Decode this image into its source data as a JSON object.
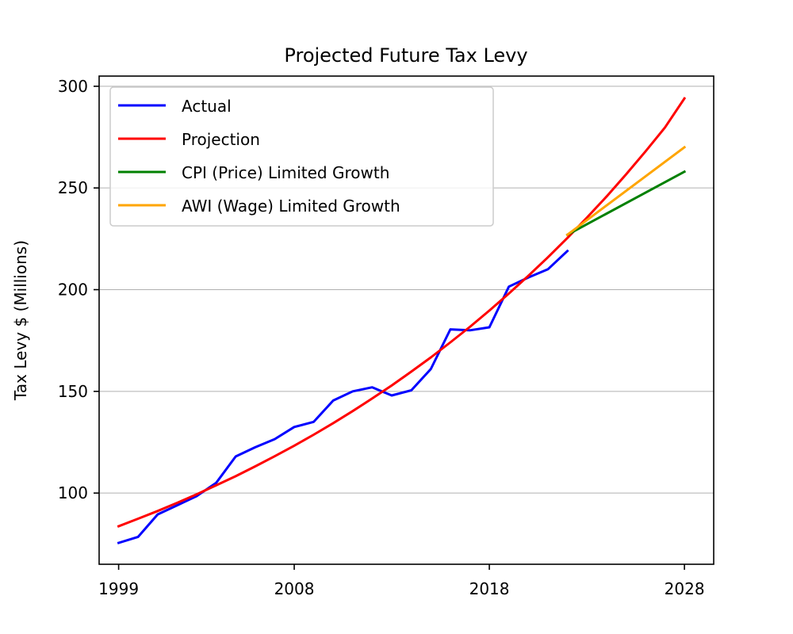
{
  "chart_data": {
    "type": "line",
    "title": "Projected Future Tax Levy",
    "xlabel": "",
    "ylabel": "Tax Levy $ (Millions)",
    "xlim": [
      1998,
      2029.5
    ],
    "ylim": [
      65,
      305
    ],
    "xticks": [
      1999,
      2008,
      2018,
      2028
    ],
    "yticks": [
      100,
      150,
      200,
      250,
      300
    ],
    "grid": "y-major",
    "legend_position": "upper-left",
    "series": [
      {
        "name": "Actual",
        "color": "#0000ff",
        "x": [
          1999,
          2000,
          2001,
          2002,
          2003,
          2004,
          2005,
          2006,
          2007,
          2008,
          2009,
          2010,
          2011,
          2012,
          2013,
          2014,
          2015,
          2016,
          2017,
          2018,
          2019,
          2020,
          2021,
          2022
        ],
        "y": [
          75.5,
          78.5,
          89.5,
          94,
          98.5,
          105,
          118,
          122.5,
          126.5,
          132.5,
          135,
          145.5,
          150,
          152,
          148,
          150.5,
          161,
          180.5,
          180,
          181.5,
          201.5,
          206,
          210,
          219
        ]
      },
      {
        "name": "Projection",
        "color": "#ff0000",
        "x": [
          1999,
          2000,
          2001,
          2002,
          2003,
          2004,
          2005,
          2006,
          2007,
          2008,
          2009,
          2010,
          2011,
          2012,
          2013,
          2014,
          2015,
          2016,
          2017,
          2018,
          2019,
          2020,
          2021,
          2022,
          2023,
          2024,
          2025,
          2026,
          2027,
          2028
        ],
        "y": [
          83.7,
          87.4,
          91.2,
          95.2,
          99.4,
          103.8,
          108.3,
          113.1,
          118.1,
          123.3,
          128.7,
          134.4,
          140.3,
          146.5,
          152.9,
          159.7,
          166.7,
          174.1,
          181.7,
          189.7,
          198.1,
          206.8,
          215.9,
          225.4,
          235.4,
          245.7,
          256.6,
          267.9,
          279.7,
          294
        ]
      },
      {
        "name": "CPI (Price) Limited Growth",
        "color": "#008000",
        "x": [
          2022,
          2028
        ],
        "y": [
          227,
          258
        ]
      },
      {
        "name": "AWI (Wage) Limited Growth",
        "color": "#ffa500",
        "x": [
          2022,
          2028
        ],
        "y": [
          227,
          270
        ]
      }
    ]
  }
}
